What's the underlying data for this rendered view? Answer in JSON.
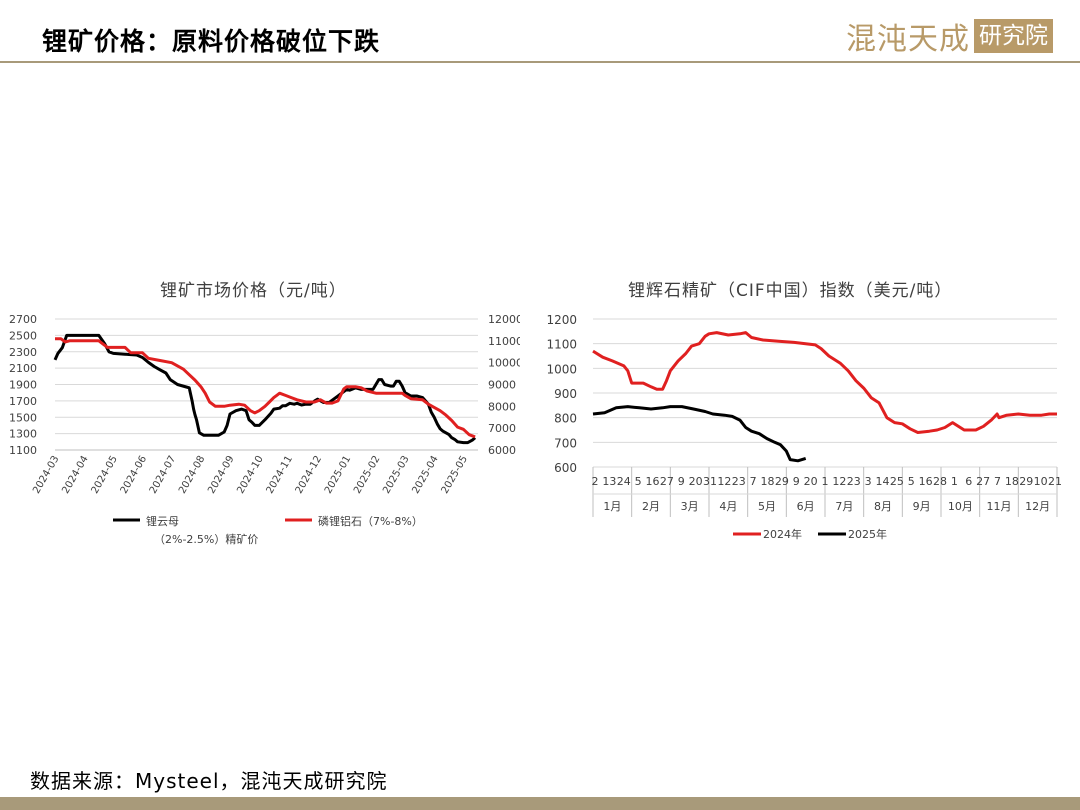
{
  "header": {
    "title": "锂矿价格：原料价格破位下跌",
    "logo_text": "混沌天成",
    "logo_box_text": "研究院",
    "colors": {
      "logo": "#b89a68",
      "rule": "#a89a7a"
    }
  },
  "source_note": "数据来源：Mysteel，混沌天成研究院",
  "chart_data": [
    {
      "type": "line",
      "title": "锂矿市场价格（元/吨）",
      "x_tick_labels": [
        "2024-03",
        "2024-04",
        "2024-05",
        "2024-06",
        "2024-07",
        "2024-08",
        "2024-09",
        "2024-10",
        "2024-11",
        "2024-12",
        "2025-01",
        "2025-02",
        "2025-03",
        "2025-04",
        "2025-05"
      ],
      "y_left": {
        "ticks": [
          "2700",
          "2500",
          "2300",
          "2100",
          "1900",
          "1700",
          "1500",
          "1300",
          "1100"
        ],
        "range": [
          1100,
          2700
        ]
      },
      "y_right": {
        "ticks": [
          "12000",
          "11000",
          "10000",
          "9000",
          "8000",
          "7000",
          "6000"
        ],
        "range": [
          6000,
          12000
        ]
      },
      "grid": true,
      "legend_position": "bottom",
      "series": [
        {
          "name": "锂云母（2%-2.5%）精矿价",
          "axis": "left",
          "color": "#000000",
          "points": [
            [
              0,
              2200
            ],
            [
              0.1,
              2280
            ],
            [
              0.25,
              2350
            ],
            [
              0.4,
              2500
            ],
            [
              0.8,
              2500
            ],
            [
              1.5,
              2500
            ],
            [
              1.7,
              2400
            ],
            [
              1.85,
              2300
            ],
            [
              2,
              2280
            ],
            [
              2.4,
              2270
            ],
            [
              2.8,
              2260
            ],
            [
              3.0,
              2230
            ],
            [
              3.2,
              2170
            ],
            [
              3.4,
              2120
            ],
            [
              3.6,
              2080
            ],
            [
              3.8,
              2040
            ],
            [
              3.95,
              1960
            ],
            [
              4.2,
              1900
            ],
            [
              4.5,
              1870
            ],
            [
              4.6,
              1860
            ],
            [
              4.7,
              1700
            ],
            [
              4.75,
              1600
            ],
            [
              4.8,
              1530
            ],
            [
              4.85,
              1470
            ],
            [
              4.95,
              1310
            ],
            [
              5.1,
              1280
            ],
            [
              5.3,
              1280
            ],
            [
              5.6,
              1280
            ],
            [
              5.8,
              1320
            ],
            [
              5.9,
              1400
            ],
            [
              6.0,
              1540
            ],
            [
              6.2,
              1580
            ],
            [
              6.4,
              1600
            ],
            [
              6.55,
              1580
            ],
            [
              6.65,
              1470
            ],
            [
              6.75,
              1440
            ],
            [
              6.85,
              1400
            ],
            [
              7.0,
              1400
            ],
            [
              7.2,
              1470
            ],
            [
              7.4,
              1550
            ],
            [
              7.5,
              1600
            ],
            [
              7.7,
              1610
            ],
            [
              7.8,
              1640
            ],
            [
              7.9,
              1640
            ],
            [
              8.05,
              1670
            ],
            [
              8.2,
              1660
            ],
            [
              8.3,
              1670
            ],
            [
              8.45,
              1650
            ],
            [
              8.6,
              1660
            ],
            [
              8.75,
              1660
            ],
            [
              8.9,
              1700
            ],
            [
              9.0,
              1720
            ],
            [
              9.2,
              1680
            ],
            [
              9.4,
              1680
            ],
            [
              9.55,
              1720
            ],
            [
              9.7,
              1760
            ],
            [
              9.85,
              1800
            ],
            [
              10.0,
              1840
            ],
            [
              10.1,
              1830
            ],
            [
              10.3,
              1860
            ],
            [
              10.5,
              1840
            ],
            [
              10.7,
              1840
            ],
            [
              10.9,
              1840
            ],
            [
              11.0,
              1900
            ],
            [
              11.1,
              1960
            ],
            [
              11.2,
              1960
            ],
            [
              11.3,
              1900
            ],
            [
              11.5,
              1880
            ],
            [
              11.6,
              1880
            ],
            [
              11.7,
              1940
            ],
            [
              11.8,
              1940
            ],
            [
              11.9,
              1880
            ],
            [
              12.0,
              1800
            ],
            [
              12.2,
              1760
            ],
            [
              12.4,
              1760
            ],
            [
              12.6,
              1740
            ],
            [
              12.7,
              1700
            ],
            [
              12.8,
              1660
            ],
            [
              12.9,
              1560
            ],
            [
              13.0,
              1500
            ],
            [
              13.1,
              1420
            ],
            [
              13.2,
              1360
            ],
            [
              13.3,
              1330
            ],
            [
              13.5,
              1290
            ],
            [
              13.6,
              1250
            ],
            [
              13.7,
              1230
            ],
            [
              13.8,
              1200
            ],
            [
              14.0,
              1190
            ],
            [
              14.15,
              1190
            ],
            [
              14.3,
              1220
            ],
            [
              14.4,
              1250
            ]
          ]
        },
        {
          "name": "磷锂铝石（7%-8%）",
          "axis": "right",
          "color": "#e02020",
          "points": [
            [
              0,
              11100
            ],
            [
              0.2,
              11100
            ],
            [
              0.35,
              10950
            ],
            [
              0.5,
              11000
            ],
            [
              1.0,
              11000
            ],
            [
              1.5,
              11000
            ],
            [
              1.8,
              10700
            ],
            [
              2.4,
              10700
            ],
            [
              2.6,
              10450
            ],
            [
              3.0,
              10450
            ],
            [
              3.2,
              10200
            ],
            [
              3.6,
              10100
            ],
            [
              4.0,
              10000
            ],
            [
              4.4,
              9700
            ],
            [
              4.6,
              9450
            ],
            [
              4.8,
              9200
            ],
            [
              5.0,
              8900
            ],
            [
              5.15,
              8600
            ],
            [
              5.3,
              8200
            ],
            [
              5.5,
              8000
            ],
            [
              5.8,
              8000
            ],
            [
              6.0,
              8050
            ],
            [
              6.3,
              8100
            ],
            [
              6.5,
              8050
            ],
            [
              6.7,
              7800
            ],
            [
              6.85,
              7700
            ],
            [
              7.0,
              7800
            ],
            [
              7.2,
              8000
            ],
            [
              7.35,
              8200
            ],
            [
              7.5,
              8400
            ],
            [
              7.6,
              8500
            ],
            [
              7.7,
              8600
            ],
            [
              7.9,
              8500
            ],
            [
              8.1,
              8400
            ],
            [
              8.3,
              8300
            ],
            [
              8.6,
              8200
            ],
            [
              8.9,
              8200
            ],
            [
              9.1,
              8300
            ],
            [
              9.3,
              8150
            ],
            [
              9.5,
              8150
            ],
            [
              9.7,
              8250
            ],
            [
              9.9,
              8800
            ],
            [
              10.0,
              8900
            ],
            [
              10.3,
              8900
            ],
            [
              10.5,
              8850
            ],
            [
              10.7,
              8700
            ],
            [
              11.0,
              8600
            ],
            [
              11.3,
              8600
            ],
            [
              11.6,
              8600
            ],
            [
              11.9,
              8600
            ],
            [
              12.0,
              8500
            ],
            [
              12.2,
              8350
            ],
            [
              12.6,
              8300
            ],
            [
              12.8,
              8100
            ],
            [
              13.0,
              7950
            ],
            [
              13.2,
              7800
            ],
            [
              13.4,
              7600
            ],
            [
              13.6,
              7350
            ],
            [
              13.8,
              7050
            ],
            [
              14.0,
              6950
            ],
            [
              14.2,
              6700
            ],
            [
              14.4,
              6600
            ]
          ]
        }
      ]
    },
    {
      "type": "line",
      "title": "锂辉石精矿（CIF中国）指数（美元/吨）",
      "y_ticks": [
        "1200",
        "1100",
        "1000",
        "900",
        "800",
        "700",
        "600"
      ],
      "ylim": [
        600,
        1200
      ],
      "grid": true,
      "legend_position": "bottom",
      "x_day_labels": [
        "2",
        "13",
        "24",
        "5",
        "16",
        "27",
        "9",
        "20",
        "31",
        "12",
        "23",
        "7",
        "18",
        "29",
        "9",
        "20",
        "1",
        "12",
        "23",
        "3",
        "14",
        "25",
        "5",
        "16",
        "28",
        "1",
        "6",
        "27",
        "7",
        "18",
        "29",
        "10",
        "21"
      ],
      "months": [
        "1月",
        "2月",
        "3月",
        "4月",
        "5月",
        "6月",
        "7月",
        "8月",
        "9月",
        "10月",
        "11月",
        "12月"
      ],
      "series": [
        {
          "name": "2024年",
          "color": "#e02020",
          "points": [
            [
              0,
              1070
            ],
            [
              0.25,
              1045
            ],
            [
              0.5,
              1030
            ],
            [
              0.8,
              1010
            ],
            [
              0.9,
              990
            ],
            [
              1.0,
              940
            ],
            [
              1.3,
              940
            ],
            [
              1.5,
              925
            ],
            [
              1.65,
              915
            ],
            [
              1.8,
              915
            ],
            [
              1.9,
              950
            ],
            [
              2.0,
              990
            ],
            [
              2.2,
              1030
            ],
            [
              2.4,
              1060
            ],
            [
              2.55,
              1090
            ],
            [
              2.75,
              1100
            ],
            [
              2.9,
              1130
            ],
            [
              3.0,
              1140
            ],
            [
              3.2,
              1145
            ],
            [
              3.5,
              1135
            ],
            [
              3.8,
              1140
            ],
            [
              3.95,
              1145
            ],
            [
              4.1,
              1125
            ],
            [
              4.4,
              1115
            ],
            [
              4.8,
              1110
            ],
            [
              5.2,
              1105
            ],
            [
              5.5,
              1100
            ],
            [
              5.75,
              1095
            ],
            [
              5.9,
              1080
            ],
            [
              6.1,
              1050
            ],
            [
              6.4,
              1020
            ],
            [
              6.6,
              990
            ],
            [
              6.8,
              950
            ],
            [
              7.0,
              920
            ],
            [
              7.2,
              880
            ],
            [
              7.4,
              860
            ],
            [
              7.6,
              800
            ],
            [
              7.8,
              780
            ],
            [
              8.0,
              775
            ],
            [
              8.2,
              755
            ],
            [
              8.4,
              740
            ],
            [
              8.7,
              745
            ],
            [
              8.9,
              750
            ],
            [
              9.1,
              760
            ],
            [
              9.3,
              780
            ],
            [
              9.4,
              770
            ],
            [
              9.6,
              750
            ],
            [
              9.9,
              750
            ],
            [
              10.1,
              765
            ],
            [
              10.3,
              790
            ],
            [
              10.45,
              815
            ],
            [
              10.5,
              800
            ],
            [
              10.7,
              810
            ],
            [
              11.0,
              815
            ],
            [
              11.3,
              810
            ],
            [
              11.6,
              810
            ],
            [
              11.8,
              815
            ],
            [
              12.0,
              815
            ]
          ]
        },
        {
          "name": "2025年",
          "color": "#000000",
          "points": [
            [
              0,
              815
            ],
            [
              0.3,
              820
            ],
            [
              0.6,
              840
            ],
            [
              0.9,
              845
            ],
            [
              1.2,
              840
            ],
            [
              1.5,
              835
            ],
            [
              1.8,
              840
            ],
            [
              2.0,
              845
            ],
            [
              2.3,
              845
            ],
            [
              2.6,
              835
            ],
            [
              2.9,
              825
            ],
            [
              3.1,
              815
            ],
            [
              3.4,
              810
            ],
            [
              3.6,
              805
            ],
            [
              3.8,
              790
            ],
            [
              3.95,
              760
            ],
            [
              4.1,
              745
            ],
            [
              4.3,
              735
            ],
            [
              4.5,
              715
            ],
            [
              4.7,
              700
            ],
            [
              4.85,
              690
            ],
            [
              5.0,
              665
            ],
            [
              5.1,
              630
            ],
            [
              5.3,
              625
            ],
            [
              5.5,
              635
            ]
          ]
        }
      ]
    }
  ]
}
